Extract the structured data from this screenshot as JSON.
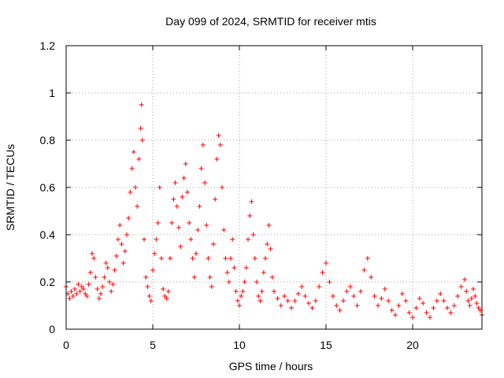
{
  "chart_data": {
    "type": "scatter",
    "title": "Day 099 of 2024, SRMTID for receiver mtis",
    "xlabel": "GPS time / hours",
    "ylabel": "SRMTID / TECUs",
    "xlim": [
      0,
      24
    ],
    "ylim": [
      0,
      1.2
    ],
    "x_ticks": [
      0,
      5,
      10,
      15,
      20
    ],
    "x_tick_labels": [
      "0",
      "5",
      "10",
      "15",
      "20"
    ],
    "y_ticks": [
      0,
      0.2,
      0.4,
      0.6,
      0.8,
      1.0,
      1.2
    ],
    "y_tick_labels": [
      "0",
      "0.2",
      "0.4",
      "0.6",
      "0.8",
      "1",
      "1.2"
    ],
    "grid": true,
    "marker": "+",
    "color": "#ff0000",
    "series": [
      {
        "name": "mtis",
        "points": [
          [
            0.0,
            0.18
          ],
          [
            0.1,
            0.15
          ],
          [
            0.2,
            0.13
          ],
          [
            0.3,
            0.16
          ],
          [
            0.4,
            0.14
          ],
          [
            0.5,
            0.17
          ],
          [
            0.6,
            0.15
          ],
          [
            0.7,
            0.19
          ],
          [
            0.8,
            0.16
          ],
          [
            0.9,
            0.18
          ],
          [
            1.0,
            0.17
          ],
          [
            1.1,
            0.15
          ],
          [
            1.2,
            0.14
          ],
          [
            1.3,
            0.19
          ],
          [
            1.4,
            0.24
          ],
          [
            1.5,
            0.32
          ],
          [
            1.6,
            0.3
          ],
          [
            1.7,
            0.22
          ],
          [
            1.8,
            0.17
          ],
          [
            1.9,
            0.13
          ],
          [
            2.0,
            0.15
          ],
          [
            2.1,
            0.18
          ],
          [
            2.2,
            0.22
          ],
          [
            2.3,
            0.28
          ],
          [
            2.4,
            0.26
          ],
          [
            2.5,
            0.2
          ],
          [
            2.6,
            0.16
          ],
          [
            2.7,
            0.19
          ],
          [
            2.8,
            0.25
          ],
          [
            2.9,
            0.31
          ],
          [
            3.0,
            0.38
          ],
          [
            3.1,
            0.44
          ],
          [
            3.2,
            0.36
          ],
          [
            3.3,
            0.28
          ],
          [
            3.4,
            0.33
          ],
          [
            3.5,
            0.4
          ],
          [
            3.6,
            0.47
          ],
          [
            3.7,
            0.58
          ],
          [
            3.8,
            0.68
          ],
          [
            3.9,
            0.75
          ],
          [
            4.0,
            0.6
          ],
          [
            4.1,
            0.52
          ],
          [
            4.2,
            0.72
          ],
          [
            4.3,
            0.85
          ],
          [
            4.35,
            0.95
          ],
          [
            4.4,
            0.8
          ],
          [
            4.5,
            0.38
          ],
          [
            4.6,
            0.22
          ],
          [
            4.7,
            0.18
          ],
          [
            4.8,
            0.14
          ],
          [
            4.9,
            0.12
          ],
          [
            5.0,
            0.25
          ],
          [
            5.1,
            0.32
          ],
          [
            5.2,
            0.38
          ],
          [
            5.3,
            0.45
          ],
          [
            5.4,
            0.6
          ],
          [
            5.5,
            0.3
          ],
          [
            5.6,
            0.17
          ],
          [
            5.7,
            0.14
          ],
          [
            5.8,
            0.13
          ],
          [
            5.9,
            0.16
          ],
          [
            6.0,
            0.3
          ],
          [
            6.1,
            0.45
          ],
          [
            6.2,
            0.55
          ],
          [
            6.3,
            0.62
          ],
          [
            6.4,
            0.52
          ],
          [
            6.5,
            0.43
          ],
          [
            6.6,
            0.35
          ],
          [
            6.7,
            0.56
          ],
          [
            6.8,
            0.64
          ],
          [
            6.9,
            0.7
          ],
          [
            7.0,
            0.58
          ],
          [
            7.1,
            0.45
          ],
          [
            7.2,
            0.38
          ],
          [
            7.3,
            0.3
          ],
          [
            7.4,
            0.22
          ],
          [
            7.5,
            0.32
          ],
          [
            7.6,
            0.42
          ],
          [
            7.7,
            0.52
          ],
          [
            7.8,
            0.68
          ],
          [
            7.9,
            0.78
          ],
          [
            8.0,
            0.62
          ],
          [
            8.1,
            0.44
          ],
          [
            8.2,
            0.3
          ],
          [
            8.3,
            0.22
          ],
          [
            8.4,
            0.18
          ],
          [
            8.5,
            0.36
          ],
          [
            8.6,
            0.55
          ],
          [
            8.7,
            0.72
          ],
          [
            8.8,
            0.82
          ],
          [
            8.9,
            0.78
          ],
          [
            9.0,
            0.6
          ],
          [
            9.1,
            0.42
          ],
          [
            9.2,
            0.3
          ],
          [
            9.3,
            0.24
          ],
          [
            9.4,
            0.2
          ],
          [
            9.5,
            0.3
          ],
          [
            9.6,
            0.38
          ],
          [
            9.7,
            0.26
          ],
          [
            9.8,
            0.16
          ],
          [
            9.9,
            0.12
          ],
          [
            10.0,
            0.1
          ],
          [
            10.1,
            0.14
          ],
          [
            10.2,
            0.16
          ],
          [
            10.3,
            0.2
          ],
          [
            10.4,
            0.26
          ],
          [
            10.5,
            0.38
          ],
          [
            10.6,
            0.48
          ],
          [
            10.7,
            0.54
          ],
          [
            10.8,
            0.4
          ],
          [
            10.9,
            0.3
          ],
          [
            11.0,
            0.2
          ],
          [
            11.1,
            0.14
          ],
          [
            11.2,
            0.12
          ],
          [
            11.3,
            0.16
          ],
          [
            11.4,
            0.24
          ],
          [
            11.5,
            0.3
          ],
          [
            11.6,
            0.36
          ],
          [
            11.7,
            0.44
          ],
          [
            11.8,
            0.34
          ],
          [
            11.9,
            0.22
          ],
          [
            12.0,
            0.16
          ],
          [
            12.2,
            0.13
          ],
          [
            12.4,
            0.1
          ],
          [
            12.6,
            0.14
          ],
          [
            12.8,
            0.12
          ],
          [
            13.0,
            0.09
          ],
          [
            13.2,
            0.12
          ],
          [
            13.4,
            0.15
          ],
          [
            13.6,
            0.18
          ],
          [
            13.8,
            0.14
          ],
          [
            14.0,
            0.11
          ],
          [
            14.2,
            0.09
          ],
          [
            14.4,
            0.12
          ],
          [
            14.6,
            0.18
          ],
          [
            14.8,
            0.24
          ],
          [
            15.0,
            0.28
          ],
          [
            15.2,
            0.2
          ],
          [
            15.4,
            0.14
          ],
          [
            15.6,
            0.1
          ],
          [
            15.8,
            0.08
          ],
          [
            16.0,
            0.12
          ],
          [
            16.2,
            0.16
          ],
          [
            16.4,
            0.18
          ],
          [
            16.6,
            0.14
          ],
          [
            16.8,
            0.1
          ],
          [
            17.0,
            0.16
          ],
          [
            17.2,
            0.25
          ],
          [
            17.4,
            0.3
          ],
          [
            17.6,
            0.22
          ],
          [
            17.8,
            0.14
          ],
          [
            18.0,
            0.1
          ],
          [
            18.2,
            0.13
          ],
          [
            18.4,
            0.17
          ],
          [
            18.6,
            0.12
          ],
          [
            18.8,
            0.08
          ],
          [
            19.0,
            0.06
          ],
          [
            19.2,
            0.1
          ],
          [
            19.4,
            0.15
          ],
          [
            19.6,
            0.12
          ],
          [
            19.8,
            0.07
          ],
          [
            20.0,
            0.05
          ],
          [
            20.2,
            0.09
          ],
          [
            20.4,
            0.13
          ],
          [
            20.6,
            0.11
          ],
          [
            20.8,
            0.07
          ],
          [
            21.0,
            0.05
          ],
          [
            21.2,
            0.09
          ],
          [
            21.4,
            0.12
          ],
          [
            21.6,
            0.15
          ],
          [
            21.8,
            0.12
          ],
          [
            22.0,
            0.09
          ],
          [
            22.2,
            0.07
          ],
          [
            22.4,
            0.1
          ],
          [
            22.6,
            0.14
          ],
          [
            22.8,
            0.18
          ],
          [
            23.0,
            0.21
          ],
          [
            23.1,
            0.16
          ],
          [
            23.2,
            0.12
          ],
          [
            23.3,
            0.1
          ],
          [
            23.4,
            0.13
          ],
          [
            23.5,
            0.17
          ],
          [
            23.6,
            0.14
          ],
          [
            23.7,
            0.11
          ],
          [
            23.8,
            0.09
          ],
          [
            23.9,
            0.08
          ],
          [
            24.0,
            0.06
          ]
        ]
      }
    ]
  }
}
